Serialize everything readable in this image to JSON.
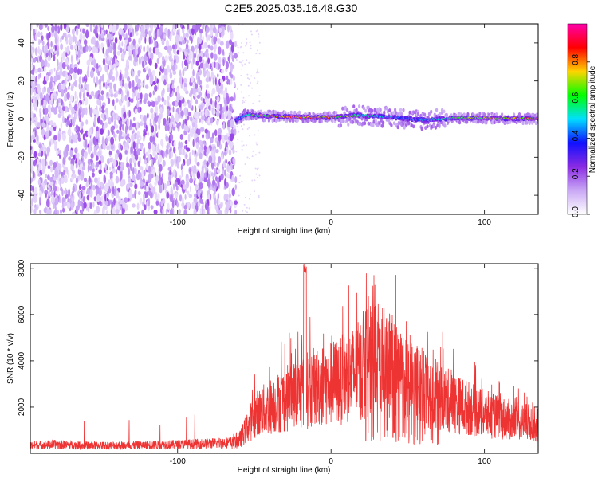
{
  "title": "C2E5.2025.035.16.48.G30",
  "chart_data": [
    {
      "type": "heatmap",
      "xlabel": "Height of straight line (km)",
      "ylabel": "Frequency (Hz)",
      "xlim": [
        -196,
        135
      ],
      "ylim": [
        -50,
        50
      ],
      "xticks": [
        -100,
        0,
        100
      ],
      "xtick_labels": [
        "-100",
        "0",
        "100"
      ],
      "yticks": [
        -40,
        -20,
        0,
        20,
        40
      ],
      "ytick_labels": [
        "-40",
        "-20",
        "0",
        "20",
        "40"
      ],
      "colorbar": {
        "label": "Normalized spectral amplitude",
        "range": [
          0,
          1
        ],
        "ticks": [
          0.0,
          0.2,
          0.4,
          0.6,
          0.8
        ],
        "tick_labels": [
          "0.0",
          "0.2",
          "0.4",
          "0.6",
          "0.8"
        ],
        "colors": [
          "#ffffff",
          "#c9a8f5",
          "#8a2be2",
          "#1010ff",
          "#00dfff",
          "#00ff00",
          "#ffd400",
          "#ff0000",
          "#ff00aa"
        ]
      },
      "noise_region": {
        "x_range": [
          -196,
          -62
        ],
        "freq_range": [
          -50,
          50
        ],
        "typical_amplitude": 0.15
      },
      "signal_trace": [
        {
          "x": -62,
          "freq": -0.5,
          "amplitude": 0.45
        },
        {
          "x": -55,
          "freq": 2.5,
          "amplitude": 0.55
        },
        {
          "x": -40,
          "freq": 1.5,
          "amplitude": 0.8
        },
        {
          "x": -20,
          "freq": 1.0,
          "amplitude": 0.85
        },
        {
          "x": 0,
          "freq": 0.8,
          "amplitude": 0.85
        },
        {
          "x": 15,
          "freq": 2.0,
          "amplitude": 0.6
        },
        {
          "x": 30,
          "freq": 1.5,
          "amplitude": 0.5
        },
        {
          "x": 45,
          "freq": 0.5,
          "amplitude": 0.45
        },
        {
          "x": 60,
          "freq": -0.5,
          "amplitude": 0.5
        },
        {
          "x": 80,
          "freq": 0.5,
          "amplitude": 0.6
        },
        {
          "x": 100,
          "freq": 0.5,
          "amplitude": 0.75
        },
        {
          "x": 120,
          "freq": 0.3,
          "amplitude": 0.8
        },
        {
          "x": 135,
          "freq": 0.2,
          "amplitude": 0.8
        }
      ]
    },
    {
      "type": "line",
      "xlabel": "Height of straight line (km)",
      "ylabel": "SNR (10 * v/v)",
      "xlim": [
        -196,
        135
      ],
      "ylim": [
        0,
        8200
      ],
      "xticks": [
        -100,
        0,
        100
      ],
      "xtick_labels": [
        "-100",
        "0",
        "100"
      ],
      "yticks": [
        2000,
        4000,
        6000,
        8000
      ],
      "ytick_labels": [
        "2000",
        "4000",
        "6000",
        "8000"
      ],
      "series": [
        {
          "color": "#ee3333",
          "x": [
            -196,
            -180,
            -160,
            -140,
            -120,
            -100,
            -80,
            -65,
            -60,
            -50,
            -40,
            -30,
            -20,
            -10,
            0,
            10,
            20,
            25,
            30,
            40,
            50,
            60,
            70,
            80,
            90,
            100,
            110,
            120,
            130,
            135
          ],
          "y": [
            400,
            450,
            400,
            400,
            420,
            450,
            500,
            550,
            700,
            2100,
            2600,
            3000,
            3400,
            3700,
            3900,
            4200,
            4700,
            5200,
            5300,
            4800,
            4200,
            3600,
            3200,
            2800,
            2500,
            2200,
            2000,
            1800,
            1700,
            1600
          ]
        }
      ]
    }
  ]
}
